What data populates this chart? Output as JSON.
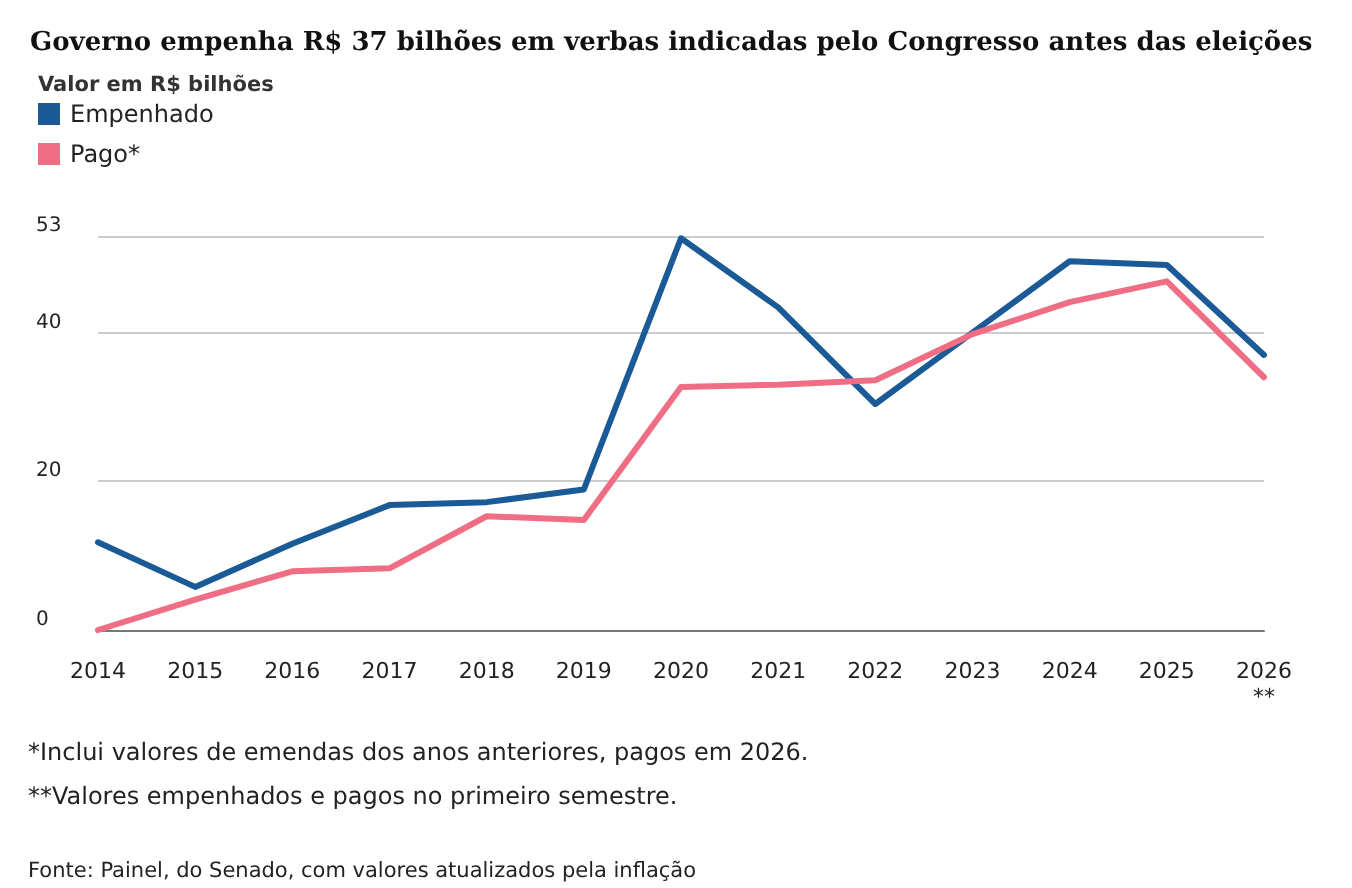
{
  "chart_data": {
    "type": "line",
    "title": "Governo empenha R$ 37 bilhões em verbas indicadas pelo Congresso antes das eleições",
    "subtitle": "Valor em R$ bilhões",
    "categories": [
      "2014",
      "2015",
      "2016",
      "2017",
      "2018",
      "2019",
      "2020",
      "2021",
      "2022",
      "2023",
      "2024",
      "2025",
      "2026\n**"
    ],
    "series": [
      {
        "name": "Empenhado",
        "color": "#1a5a96",
        "values": [
          11.8,
          5.8,
          11.6,
          16.8,
          17.2,
          18.9,
          52.7,
          43.4,
          30.4,
          40.0,
          49.6,
          49.1,
          37.0
        ]
      },
      {
        "name": "Pago*",
        "color": "#f06e84",
        "values": [
          0,
          4.1,
          7.9,
          8.3,
          15.3,
          14.8,
          32.7,
          33.0,
          33.6,
          39.8,
          44.1,
          46.9,
          34.0
        ]
      }
    ],
    "ylim": [
      0,
      53
    ],
    "yticks": [
      0,
      20,
      40,
      53
    ],
    "grid": "y",
    "legend": "top left",
    "marker": "none",
    "line_style": "solid",
    "annotations": [
      "*Inclui valores de emendas dos anos anteriores, pagos em 2026.",
      "**Valores empenhados e pagos no primeiro semestre.",
      "Fonte: Painel, do Senado, com valores atualizados pela inflação"
    ]
  }
}
